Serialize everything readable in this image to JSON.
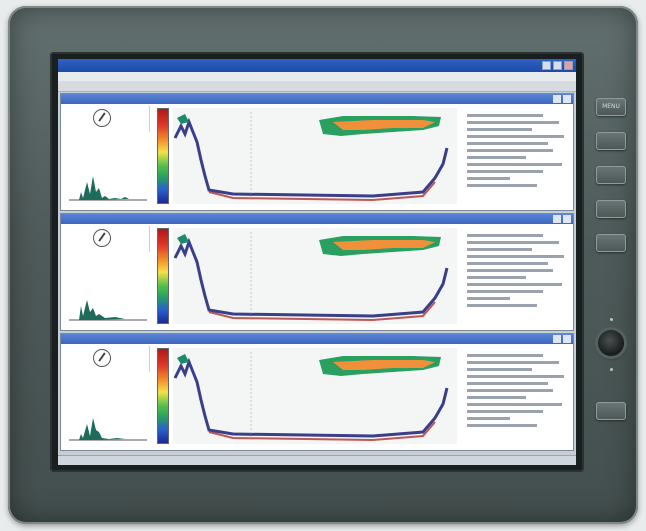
{
  "device": {
    "brand_top": "",
    "brand_bottom": "",
    "buttons": [
      "MENU",
      "",
      "",
      "",
      ""
    ],
    "lower_button": ""
  },
  "window": {
    "title": "",
    "menu_items": [
      "",
      "",
      "",
      "",
      "",
      ""
    ]
  },
  "panels": [
    {
      "title": "",
      "side_header": ""
    },
    {
      "title": "",
      "side_header": ""
    },
    {
      "title": "",
      "side_header": ""
    }
  ],
  "status": {
    "text": ""
  },
  "colors": {
    "bezel": "#4f5b5a",
    "titlebar": "#1e4aa6",
    "panel_title": "#3c66bd",
    "echo_fish_outer": "#2aa060",
    "echo_fish_inner": "#f0903a",
    "seabed": "#b03030"
  }
}
